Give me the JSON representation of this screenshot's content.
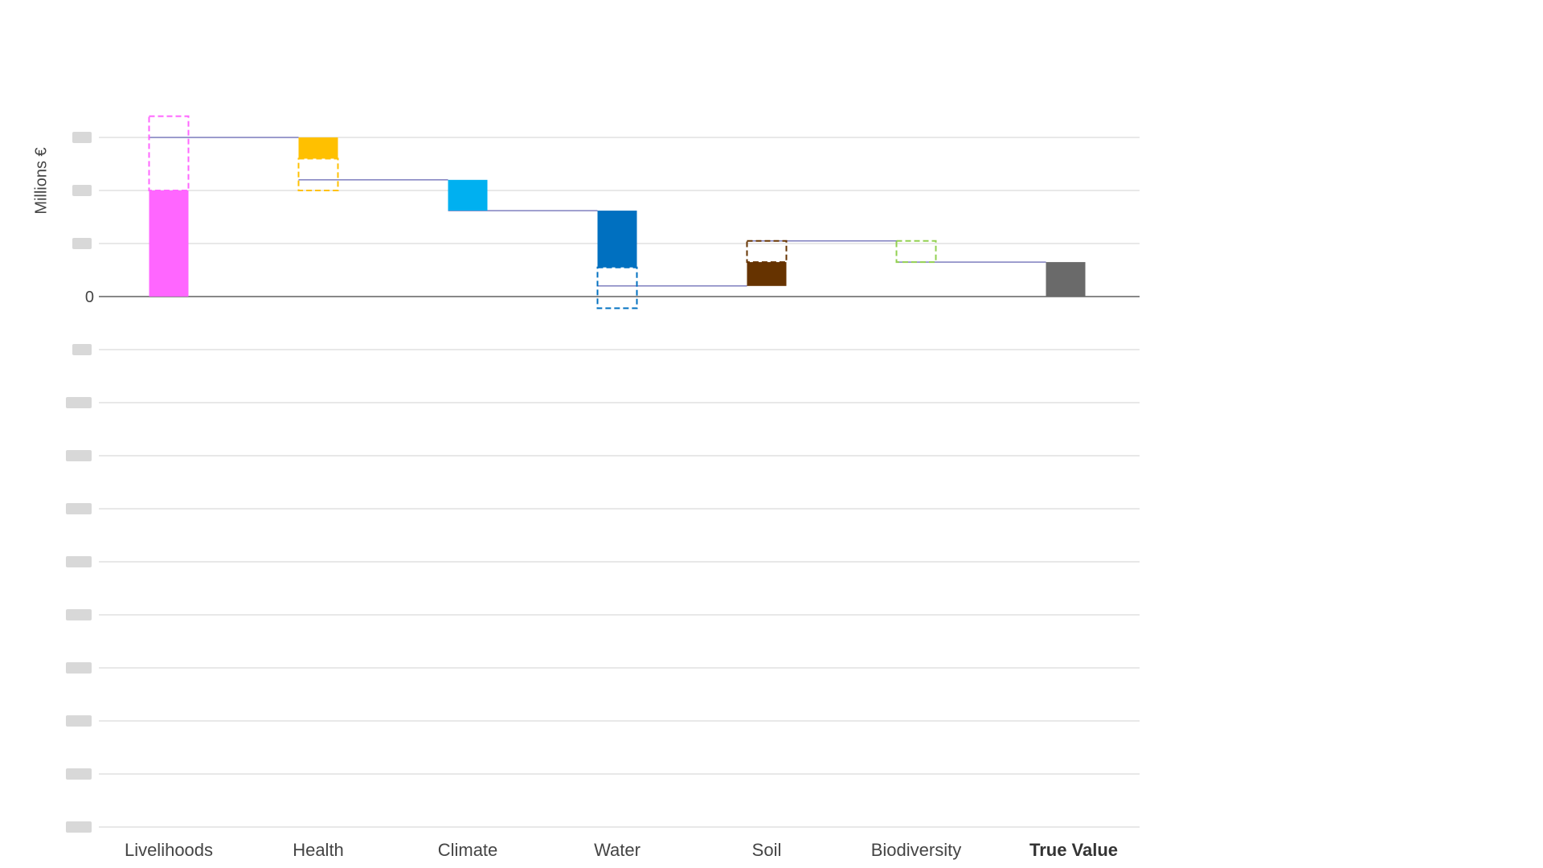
{
  "chart_data": {
    "type": "bar",
    "subtype": "waterfall",
    "ylabel": "Millions €",
    "visible_tick_labels": [
      {
        "value": 0,
        "label": "0"
      }
    ],
    "gridline_values": [
      3,
      2,
      1,
      0,
      -1,
      -2,
      -3,
      -4,
      -5,
      -6,
      -7,
      -8,
      -9,
      -10
    ],
    "ylim": [
      -10,
      3.4
    ],
    "grid": true,
    "categories": [
      "Livelihoods",
      "Health",
      "Climate",
      "Water",
      "Soil",
      "Biodiversity",
      "True Value"
    ],
    "steps": [
      {
        "category": "Livelihoods",
        "kind": "increase",
        "solid_from": 0,
        "solid_to": 2.0,
        "dashed_from": 2.0,
        "dashed_to": 3.4,
        "connector_level": 3.0,
        "color": "#ff66ff"
      },
      {
        "category": "Health",
        "kind": "decrease",
        "solid_from": 3.0,
        "solid_to": 2.6,
        "dashed_from": 2.6,
        "dashed_to": 2.0,
        "connector_level": 2.2,
        "color": "#ffc000"
      },
      {
        "category": "Climate",
        "kind": "decrease",
        "solid_from": 2.2,
        "solid_to": 1.62,
        "connector_level": 1.62,
        "color": "#00b0f0"
      },
      {
        "category": "Water",
        "kind": "decrease",
        "solid_from": 1.62,
        "solid_to": 0.55,
        "dashed_from": 0.55,
        "dashed_to": -0.22,
        "connector_level": 0.2,
        "color": "#0070c0"
      },
      {
        "category": "Soil",
        "kind": "increase",
        "solid_from": 0.2,
        "solid_to": 0.65,
        "dashed_from": 0.65,
        "dashed_to": 1.05,
        "connector_level": 1.05,
        "color": "#663300"
      },
      {
        "category": "Biodiversity",
        "kind": "decrease",
        "dashed_from": 1.05,
        "dashed_to": 0.65,
        "connector_level": 0.65,
        "color": "#92d050"
      },
      {
        "category": "True Value",
        "kind": "total",
        "solid_from": 0,
        "solid_to": 0.65,
        "color": "#6a6a6a"
      }
    ],
    "colors": {
      "gridline": "#d9d9d9",
      "zero_line": "#404040",
      "connector": "#7f7fbf"
    }
  }
}
